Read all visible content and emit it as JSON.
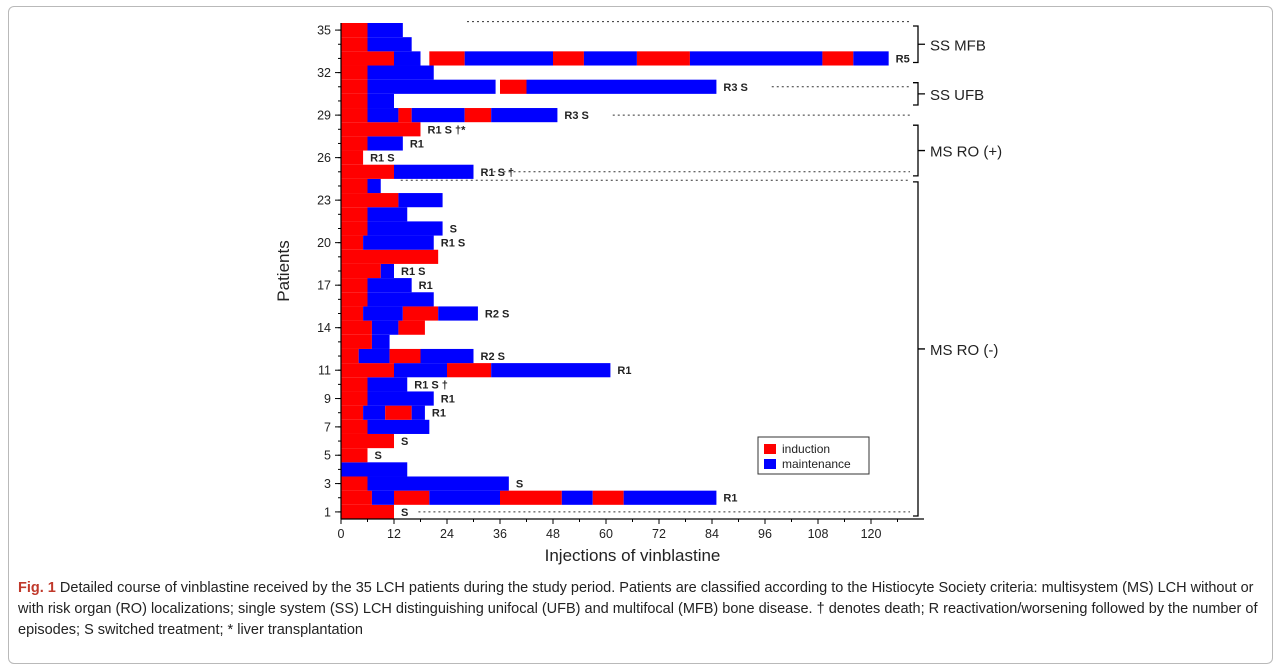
{
  "chart_data": {
    "type": "bar",
    "orientation": "horizontal",
    "stacked": true,
    "xlabel": "Injections of vinblastine",
    "ylabel": "Patients",
    "xlim": [
      0,
      132
    ],
    "ylim": [
      0.5,
      35.5
    ],
    "x_ticks": [
      0,
      12,
      24,
      36,
      48,
      60,
      72,
      84,
      96,
      108,
      120
    ],
    "y_ticks": [
      1,
      3,
      5,
      7,
      9,
      11,
      14,
      17,
      20,
      23,
      26,
      29,
      32,
      35
    ],
    "grid": false,
    "legend_position": "inside-bottom-right",
    "colors": {
      "induction": "#ff0000",
      "maintenance": "#0000ff"
    },
    "legend": [
      {
        "key": "induction",
        "label": "induction"
      },
      {
        "key": "maintenance",
        "label": "maintenance"
      }
    ],
    "patients": [
      {
        "patient": 1,
        "segments": [
          [
            "induction",
            0,
            12
          ]
        ],
        "label": "S"
      },
      {
        "patient": 2,
        "segments": [
          [
            "induction",
            0,
            7
          ],
          [
            "maintenance",
            7,
            12
          ],
          [
            "induction",
            12,
            20
          ],
          [
            "maintenance",
            20,
            36
          ],
          [
            "induction",
            36,
            50
          ],
          [
            "maintenance",
            50,
            57
          ],
          [
            "induction",
            57,
            64
          ],
          [
            "maintenance",
            64,
            85
          ]
        ],
        "label": "R1"
      },
      {
        "patient": 3,
        "segments": [
          [
            "induction",
            0,
            6
          ],
          [
            "maintenance",
            6,
            38
          ]
        ],
        "label": "S"
      },
      {
        "patient": 4,
        "segments": [
          [
            "maintenance",
            0,
            15
          ]
        ],
        "label": ""
      },
      {
        "patient": 5,
        "segments": [
          [
            "induction",
            0,
            6
          ]
        ],
        "label": "S"
      },
      {
        "patient": 6,
        "segments": [
          [
            "induction",
            0,
            12
          ]
        ],
        "label": "S"
      },
      {
        "patient": 7,
        "segments": [
          [
            "induction",
            0,
            6
          ],
          [
            "maintenance",
            6,
            20
          ]
        ],
        "label": ""
      },
      {
        "patient": 8,
        "segments": [
          [
            "induction",
            0,
            5
          ],
          [
            "maintenance",
            5,
            10
          ],
          [
            "induction",
            10,
            16
          ],
          [
            "maintenance",
            16,
            19
          ]
        ],
        "label": "R1"
      },
      {
        "patient": 9,
        "segments": [
          [
            "induction",
            0,
            6
          ],
          [
            "maintenance",
            6,
            21
          ]
        ],
        "label": "R1"
      },
      {
        "patient": 10,
        "segments": [
          [
            "induction",
            0,
            6
          ],
          [
            "maintenance",
            6,
            15
          ]
        ],
        "label": "R1 S †"
      },
      {
        "patient": 11,
        "segments": [
          [
            "induction",
            0,
            12
          ],
          [
            "maintenance",
            12,
            24
          ],
          [
            "induction",
            24,
            34
          ],
          [
            "maintenance",
            34,
            61
          ]
        ],
        "label": "R1"
      },
      {
        "patient": 12,
        "segments": [
          [
            "induction",
            0,
            4
          ],
          [
            "maintenance",
            4,
            11
          ],
          [
            "induction",
            11,
            18
          ],
          [
            "maintenance",
            18,
            30
          ]
        ],
        "label": "R2 S"
      },
      {
        "patient": 13,
        "segments": [
          [
            "induction",
            0,
            7
          ],
          [
            "maintenance",
            7,
            11
          ]
        ],
        "label": ""
      },
      {
        "patient": 14,
        "segments": [
          [
            "induction",
            0,
            7
          ],
          [
            "maintenance",
            7,
            13
          ],
          [
            "induction",
            13,
            19
          ]
        ],
        "label": ""
      },
      {
        "patient": 15,
        "segments": [
          [
            "induction",
            0,
            5
          ],
          [
            "maintenance",
            5,
            14
          ],
          [
            "induction",
            14,
            22
          ],
          [
            "maintenance",
            22,
            31
          ]
        ],
        "label": "R2 S"
      },
      {
        "patient": 16,
        "segments": [
          [
            "induction",
            0,
            6
          ],
          [
            "maintenance",
            6,
            21
          ]
        ],
        "label": ""
      },
      {
        "patient": 17,
        "segments": [
          [
            "induction",
            0,
            6
          ],
          [
            "maintenance",
            6,
            16
          ]
        ],
        "label": "R1"
      },
      {
        "patient": 18,
        "segments": [
          [
            "induction",
            0,
            9
          ],
          [
            "maintenance",
            9,
            12
          ]
        ],
        "label": "R1 S"
      },
      {
        "patient": 19,
        "segments": [
          [
            "induction",
            0,
            22
          ]
        ],
        "label": ""
      },
      {
        "patient": 20,
        "segments": [
          [
            "induction",
            0,
            5
          ],
          [
            "maintenance",
            5,
            21
          ]
        ],
        "label": "R1 S"
      },
      {
        "patient": 21,
        "segments": [
          [
            "induction",
            0,
            6
          ],
          [
            "maintenance",
            6,
            23
          ]
        ],
        "label": "S"
      },
      {
        "patient": 22,
        "segments": [
          [
            "induction",
            0,
            6
          ],
          [
            "maintenance",
            6,
            15
          ]
        ],
        "label": ""
      },
      {
        "patient": 23,
        "segments": [
          [
            "induction",
            0,
            13
          ],
          [
            "maintenance",
            13,
            23
          ]
        ],
        "label": ""
      },
      {
        "patient": 24,
        "segments": [
          [
            "induction",
            0,
            6
          ],
          [
            "maintenance",
            6,
            9
          ]
        ],
        "label": ""
      },
      {
        "patient": 25,
        "segments": [
          [
            "induction",
            0,
            12
          ],
          [
            "maintenance",
            12,
            30
          ]
        ],
        "label": "R1 S †"
      },
      {
        "patient": 26,
        "segments": [
          [
            "induction",
            0,
            5
          ]
        ],
        "label": "R1 S"
      },
      {
        "patient": 27,
        "segments": [
          [
            "induction",
            0,
            6
          ],
          [
            "maintenance",
            6,
            14
          ]
        ],
        "label": "R1"
      },
      {
        "patient": 28,
        "segments": [
          [
            "induction",
            0,
            18
          ]
        ],
        "label": "R1 S †*"
      },
      {
        "patient": 29,
        "segments": [
          [
            "induction",
            0,
            6
          ],
          [
            "maintenance",
            6,
            13
          ],
          [
            "induction",
            13,
            16
          ],
          [
            "maintenance",
            16,
            28
          ],
          [
            "induction",
            28,
            34
          ],
          [
            "maintenance",
            34,
            49
          ]
        ],
        "label": "R3 S"
      },
      {
        "patient": 30,
        "segments": [
          [
            "induction",
            0,
            6
          ],
          [
            "maintenance",
            6,
            12
          ]
        ],
        "label": ""
      },
      {
        "patient": 31,
        "segments": [
          [
            "induction",
            0,
            6
          ],
          [
            "maintenance",
            6,
            35
          ],
          [
            "induction",
            36,
            42
          ],
          [
            "maintenance",
            42,
            85
          ]
        ],
        "label": "R3 S"
      },
      {
        "patient": 32,
        "segments": [
          [
            "induction",
            0,
            6
          ],
          [
            "maintenance",
            6,
            21
          ]
        ],
        "label": ""
      },
      {
        "patient": 33,
        "segments": [
          [
            "induction",
            0,
            12
          ],
          [
            "maintenance",
            12,
            18
          ],
          [
            "induction",
            20,
            28
          ],
          [
            "maintenance",
            28,
            48
          ],
          [
            "induction",
            48,
            55
          ],
          [
            "maintenance",
            55,
            67
          ],
          [
            "induction",
            67,
            79
          ],
          [
            "maintenance",
            79,
            109
          ],
          [
            "induction",
            109,
            116
          ],
          [
            "maintenance",
            116,
            124
          ]
        ],
        "label": "R5"
      },
      {
        "patient": 34,
        "segments": [
          [
            "induction",
            0,
            6
          ],
          [
            "maintenance",
            6,
            16
          ]
        ],
        "label": ""
      },
      {
        "patient": 35,
        "segments": [
          [
            "induction",
            0,
            6
          ],
          [
            "maintenance",
            6,
            14
          ]
        ],
        "label": ""
      }
    ],
    "groups": [
      {
        "label": "SS MFB",
        "from": 32.5,
        "to": 35.5,
        "leader_y": 35
      },
      {
        "label": "SS UFB",
        "from": 29.5,
        "to": 31.5,
        "leader_y": 31
      },
      {
        "label": "MS RO (+)",
        "from": 24.5,
        "to": 28.5,
        "leader_y": 28
      },
      {
        "label": "MS RO (-)",
        "from": 0.5,
        "to": 24.5,
        "leader_y": 1
      }
    ]
  },
  "caption": {
    "label": "Fig. 1",
    "text": " Detailed course of vinblastine received by the 35 LCH patients during the study period. Patients are classified according to the Histiocyte Society criteria: multisystem (MS) LCH without or with risk organ (RO) localizations; single system (SS) LCH distinguishing unifocal (UFB) and multifocal (MFB) bone disease. † denotes death; R reactivation/worsening followed by the number of episodes; S switched treatment; * liver transplantation"
  }
}
